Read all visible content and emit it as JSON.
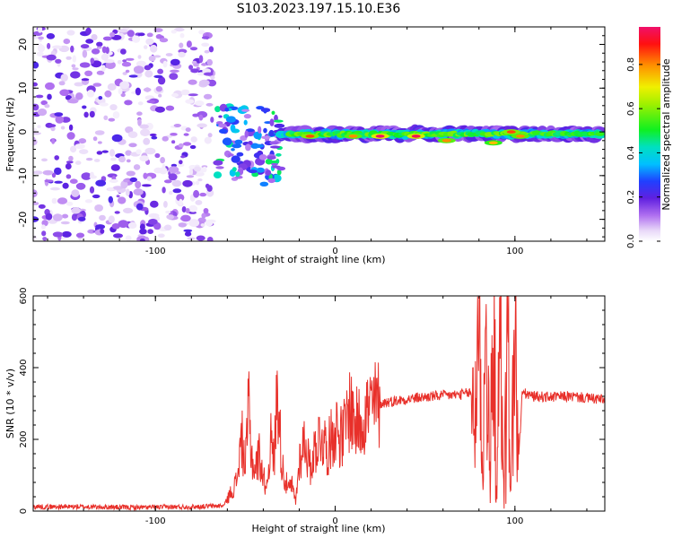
{
  "figure": {
    "title": "S103.2023.197.15.10.E36"
  },
  "colorbar": {
    "label": "Normalized spectral amplitude",
    "range": [
      0,
      0.97
    ],
    "ticks": [
      0.0,
      0.2,
      0.4,
      0.6,
      0.8
    ],
    "tick_labels": [
      "0.0",
      "0.2",
      "0.4",
      "0.6",
      "0.8"
    ],
    "colormap": "rainbow (white-lavender, purple, blue, cyan, green, yellow, orange, red, magenta)"
  },
  "chart_data": [
    {
      "type": "heatmap",
      "title": "",
      "xlabel": "Height of straight line (km)",
      "ylabel": "Frequency (Hz)",
      "xlim": [
        -168,
        150
      ],
      "ylim": [
        -25,
        24
      ],
      "x_ticks": [
        -100,
        0,
        100
      ],
      "x_tick_labels": [
        "-100",
        "0",
        "100"
      ],
      "y_ticks": [
        -20,
        -10,
        0,
        10,
        20
      ],
      "y_tick_labels": [
        "-20",
        "-10",
        "0",
        "10",
        "20"
      ],
      "grid": false,
      "regions": [
        {
          "x_range": [
            -168,
            -68
          ],
          "freq_range": [
            -25,
            24
          ],
          "amplitude": [
            0.0,
            0.2
          ],
          "description": "broadband low-amplitude noise"
        },
        {
          "x_range": [
            -66,
            -30
          ],
          "freq_range": [
            -12,
            6
          ],
          "amplitude": [
            0.1,
            0.5
          ],
          "description": "scattered patches"
        },
        {
          "x_range": [
            -30,
            148
          ],
          "freq_range": [
            -2.5,
            1.5
          ],
          "amplitude": [
            0.3,
            0.97
          ],
          "description": "narrow signal band near 0 Hz"
        }
      ],
      "hotspots": [
        {
          "x": -14,
          "freq": -1,
          "amplitude": 0.85
        },
        {
          "x": 10,
          "freq": -1,
          "amplitude": 0.8
        },
        {
          "x": 25,
          "freq": -1,
          "amplitude": 0.97
        },
        {
          "x": 45,
          "freq": -1,
          "amplitude": 0.95
        },
        {
          "x": 62,
          "freq": -2,
          "amplitude": 0.8
        },
        {
          "x": 88,
          "freq": -2.5,
          "amplitude": 0.75
        },
        {
          "x": 98,
          "freq": 0,
          "amplitude": 0.85
        },
        {
          "x": 103,
          "freq": -1,
          "amplitude": 0.8
        }
      ]
    },
    {
      "type": "line",
      "title": "",
      "xlabel": "Height of straight line (km)",
      "ylabel": "SNR (10 * v/v)",
      "xlim": [
        -168,
        150
      ],
      "ylim": [
        0,
        600
      ],
      "x_ticks": [
        -100,
        0,
        100
      ],
      "x_tick_labels": [
        "-100",
        "0",
        "100"
      ],
      "y_ticks": [
        0,
        200,
        400,
        600
      ],
      "y_tick_labels": [
        "0",
        "200",
        "400",
        "600"
      ],
      "grid": false,
      "series_color": "#e8302a",
      "series": [
        {
          "name": "",
          "x": [
            -168,
            -140,
            -110,
            -80,
            -62,
            -55,
            -52,
            -50,
            -48,
            -47,
            -45,
            -42,
            -40,
            -38,
            -36,
            -34,
            -32,
            -30,
            -28,
            -26,
            -24,
            -22,
            -20,
            -17,
            -14,
            -11,
            -8,
            -4,
            0,
            4,
            8,
            12,
            16,
            20,
            25,
            30,
            40,
            50,
            60,
            70,
            75,
            78,
            80,
            82,
            84,
            86,
            88,
            90,
            92,
            94,
            96,
            98,
            100,
            102,
            104,
            110,
            120,
            130,
            140,
            150
          ],
          "y": [
            12,
            12,
            10,
            12,
            15,
            80,
            205,
            120,
            300,
            180,
            110,
            160,
            90,
            70,
            200,
            140,
            365,
            150,
            90,
            60,
            70,
            25,
            140,
            200,
            120,
            180,
            215,
            170,
            240,
            200,
            290,
            240,
            270,
            290,
            300,
            305,
            312,
            318,
            322,
            325,
            330,
            290,
            590,
            120,
            500,
            80,
            480,
            100,
            460,
            60,
            500,
            80,
            540,
            130,
            330,
            320,
            318,
            320,
            315,
            310
          ]
        }
      ]
    }
  ]
}
